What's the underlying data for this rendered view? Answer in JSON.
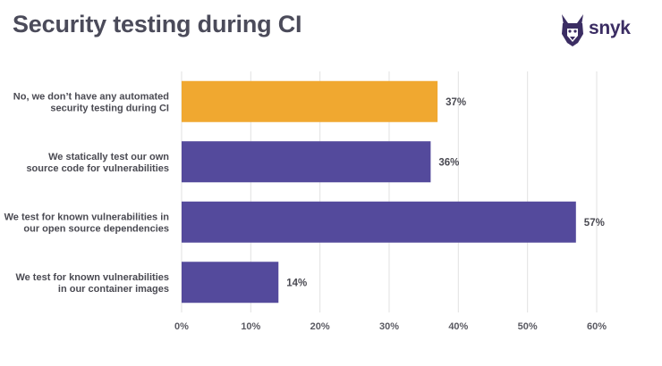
{
  "chart_data": {
    "type": "bar",
    "orientation": "horizontal",
    "title": "Security testing during CI",
    "categories": [
      [
        "No, we don’t have any automated",
        "security testing during CI"
      ],
      [
        "We statically test our own",
        "source code for vulnerabilities"
      ],
      [
        "We test for known vulnerabilities in",
        "our open source dependencies"
      ],
      [
        "We test for known vulnerabilities",
        "in our container images"
      ]
    ],
    "values": [
      37,
      36,
      57,
      14
    ],
    "value_labels": [
      "37%",
      "36%",
      "57%",
      "14%"
    ],
    "bar_colors": [
      "#f0a830",
      "#544a9c",
      "#544a9c",
      "#544a9c"
    ],
    "xlim": [
      0,
      60
    ],
    "xticks": [
      0,
      10,
      20,
      30,
      40,
      50,
      60
    ],
    "xtick_labels": [
      "0%",
      "10%",
      "20%",
      "30%",
      "40%",
      "50%",
      "60%"
    ],
    "xlabel": "",
    "ylabel": "",
    "grid": true,
    "gridline_color": "#e2e2e2"
  },
  "brand": {
    "name": "snyk",
    "logo_icon": "snyk-dog-icon",
    "color": "#3b2d63"
  }
}
